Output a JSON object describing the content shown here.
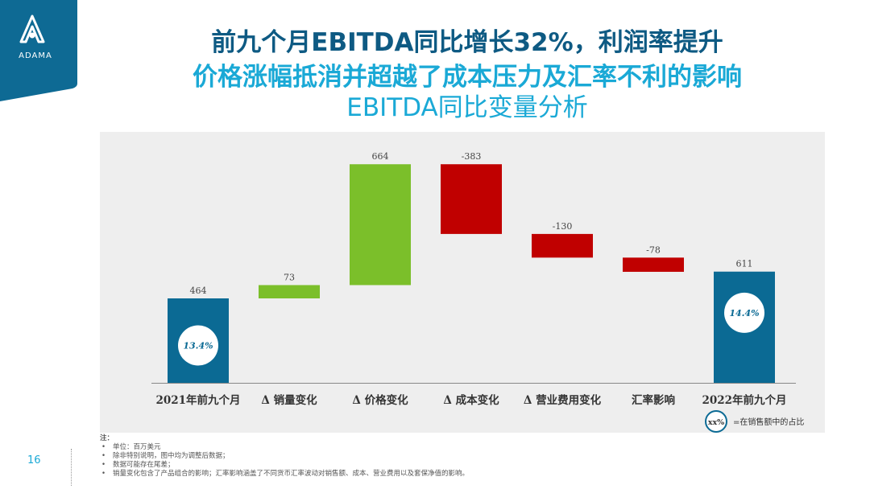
{
  "brand": {
    "name": "ADAMA",
    "color": "#0e6a94"
  },
  "titles": {
    "line1": "前九个月EBITDA同比增长32%，利润率提升",
    "line2": "价格涨幅抵消并超越了成本压力及汇率不利的影响",
    "line3": "EBITDA同比变量分析"
  },
  "colors": {
    "total": "#0b6a94",
    "increase": "#7bbf2a",
    "decrease": "#c00000",
    "panel": "#eeeeee"
  },
  "chart_data": {
    "type": "waterfall",
    "categories": [
      "2021年前九个月",
      "Δ 销量变化",
      "Δ 价格变化",
      "Δ 成本变化",
      "Δ 营业费用变化",
      "汇率影响",
      "2022年前九个月"
    ],
    "values": [
      464,
      73,
      664,
      -383,
      -130,
      -78,
      611
    ],
    "labels": [
      "464",
      "73",
      "664",
      "-383",
      "-130",
      "-78",
      "611"
    ],
    "kinds": [
      "total",
      "delta",
      "delta",
      "delta",
      "delta",
      "delta",
      "total"
    ],
    "margins": {
      "0": "13.4%",
      "6": "14.4%"
    },
    "legend": {
      "badge": "xx%",
      "text": "=在销售额中的占比"
    }
  },
  "notes": {
    "heading": "注：",
    "items": [
      "单位：百万美元",
      "除非特别说明，图中均为调整后数据；",
      "数据可能存在尾差；",
      "销量变化包含了产品组合的影响；汇率影响涵盖了不同货币汇率波动对销售额、成本、营业费用以及套保净值的影响。"
    ]
  },
  "page_number": "16"
}
